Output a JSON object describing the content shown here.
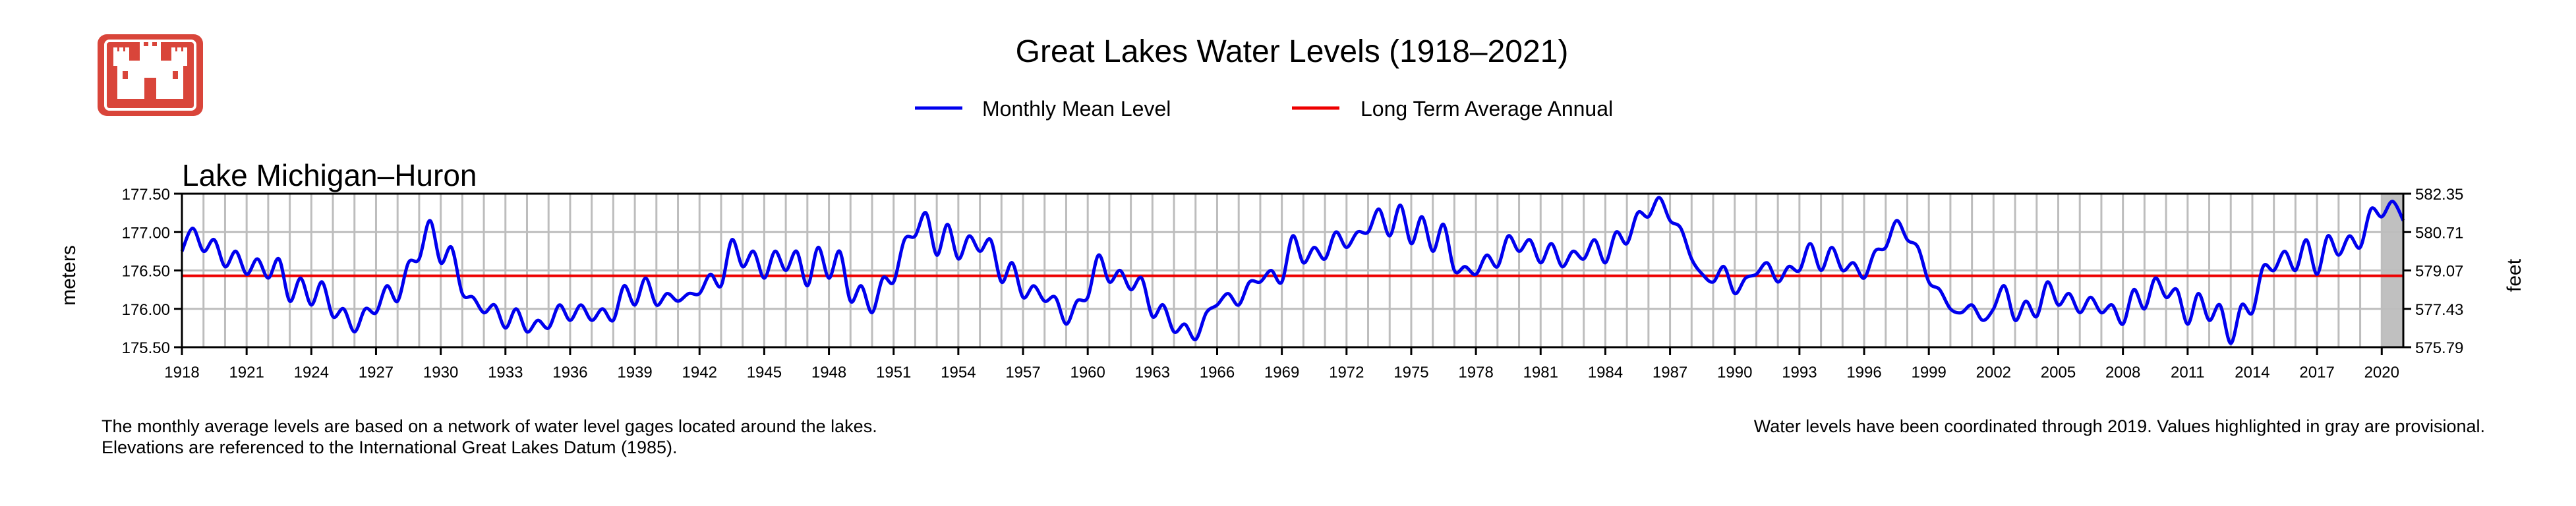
{
  "chart_data": {
    "type": "line",
    "title": "Great Lakes Water Levels (1918–2021)",
    "subtitle": "Lake Michigan–Huron",
    "ylabel_left": "meters",
    "ylabel_right": "feet",
    "legend": [
      {
        "label": "Monthly Mean Level",
        "color": "#0000ee"
      },
      {
        "label": "Long Term Average Annual",
        "color": "#ee0000"
      }
    ],
    "legend_placement": "top-center",
    "grid": true,
    "xlim": [
      1918,
      2021
    ],
    "ylim": [
      175.5,
      177.5
    ],
    "ylim_feet": [
      575.79,
      582.35
    ],
    "x_ticks": [
      "1918",
      "1921",
      "1924",
      "1927",
      "1930",
      "1933",
      "1936",
      "1939",
      "1942",
      "1945",
      "1948",
      "1951",
      "1954",
      "1957",
      "1960",
      "1963",
      "1966",
      "1969",
      "1972",
      "1975",
      "1978",
      "1981",
      "1984",
      "1987",
      "1990",
      "1993",
      "1996",
      "1999",
      "2002",
      "2005",
      "2008",
      "2011",
      "2014",
      "2017",
      "2020"
    ],
    "y_ticks_meters": [
      "175.50",
      "176.00",
      "176.50",
      "177.00",
      "177.50"
    ],
    "y_ticks_feet": [
      "575.79",
      "577.43",
      "579.07",
      "580.71",
      "582.35"
    ],
    "long_term_average": 176.43,
    "provisional_region": [
      2020,
      2021
    ],
    "series": [
      {
        "name": "Monthly Mean Level",
        "x": [
          1918,
          1918.5,
          1919,
          1919.5,
          1920,
          1920.5,
          1921,
          1921.5,
          1922,
          1922.5,
          1923,
          1923.5,
          1924,
          1924.5,
          1925,
          1925.5,
          1926,
          1926.5,
          1927,
          1927.5,
          1928,
          1928.5,
          1929,
          1929.5,
          1930,
          1930.5,
          1931,
          1931.5,
          1932,
          1932.5,
          1933,
          1933.5,
          1934,
          1934.5,
          1935,
          1935.5,
          1936,
          1936.5,
          1937,
          1937.5,
          1938,
          1938.5,
          1939,
          1939.5,
          1940,
          1940.5,
          1941,
          1941.5,
          1942,
          1942.5,
          1943,
          1943.5,
          1944,
          1944.5,
          1945,
          1945.5,
          1946,
          1946.5,
          1947,
          1947.5,
          1948,
          1948.5,
          1949,
          1949.5,
          1950,
          1950.5,
          1951,
          1951.5,
          1952,
          1952.5,
          1953,
          1953.5,
          1954,
          1954.5,
          1955,
          1955.5,
          1956,
          1956.5,
          1957,
          1957.5,
          1958,
          1958.5,
          1959,
          1959.5,
          1960,
          1960.5,
          1961,
          1961.5,
          1962,
          1962.5,
          1963,
          1963.5,
          1964,
          1964.5,
          1965,
          1965.5,
          1966,
          1966.5,
          1967,
          1967.5,
          1968,
          1968.5,
          1969,
          1969.5,
          1970,
          1970.5,
          1971,
          1971.5,
          1972,
          1972.5,
          1973,
          1973.5,
          1974,
          1974.5,
          1975,
          1975.5,
          1976,
          1976.5,
          1977,
          1977.5,
          1978,
          1978.5,
          1979,
          1979.5,
          1980,
          1980.5,
          1981,
          1981.5,
          1982,
          1982.5,
          1983,
          1983.5,
          1984,
          1984.5,
          1985,
          1985.5,
          1986,
          1986.5,
          1987,
          1987.5,
          1988,
          1988.5,
          1989,
          1989.5,
          1990,
          1990.5,
          1991,
          1991.5,
          1992,
          1992.5,
          1993,
          1993.5,
          1994,
          1994.5,
          1995,
          1995.5,
          1996,
          1996.5,
          1997,
          1997.5,
          1998,
          1998.5,
          1999,
          1999.5,
          2000,
          2000.5,
          2001,
          2001.5,
          2002,
          2002.5,
          2003,
          2003.5,
          2004,
          2004.5,
          2005,
          2005.5,
          2006,
          2006.5,
          2007,
          2007.5,
          2008,
          2008.5,
          2009,
          2009.5,
          2010,
          2010.5,
          2011,
          2011.5,
          2012,
          2012.5,
          2013,
          2013.5,
          2014,
          2014.5,
          2015,
          2015.5,
          2016,
          2016.5,
          2017,
          2017.5,
          2018,
          2018.5,
          2019,
          2019.5,
          2020,
          2020.5,
          2021
        ],
        "values": [
          176.75,
          177.05,
          176.75,
          176.9,
          176.55,
          176.75,
          176.45,
          176.65,
          176.4,
          176.65,
          176.1,
          176.4,
          176.05,
          176.35,
          175.9,
          176.0,
          175.7,
          176.0,
          175.95,
          176.3,
          176.1,
          176.6,
          176.65,
          177.15,
          176.6,
          176.8,
          176.2,
          176.15,
          175.95,
          176.05,
          175.75,
          176.0,
          175.7,
          175.85,
          175.75,
          176.05,
          175.85,
          176.05,
          175.85,
          176.0,
          175.85,
          176.3,
          176.05,
          176.4,
          176.05,
          176.2,
          176.1,
          176.2,
          176.2,
          176.45,
          176.3,
          176.9,
          176.55,
          176.75,
          176.4,
          176.75,
          176.5,
          176.75,
          176.3,
          176.8,
          176.4,
          176.75,
          176.1,
          176.3,
          175.95,
          176.4,
          176.35,
          176.9,
          176.95,
          177.25,
          176.7,
          177.1,
          176.65,
          176.95,
          176.75,
          176.9,
          176.35,
          176.6,
          176.15,
          176.3,
          176.1,
          176.15,
          175.8,
          176.1,
          176.15,
          176.7,
          176.35,
          176.5,
          176.25,
          176.4,
          175.9,
          176.05,
          175.7,
          175.8,
          175.6,
          175.95,
          176.05,
          176.2,
          176.05,
          176.35,
          176.35,
          176.5,
          176.35,
          176.95,
          176.6,
          176.8,
          176.65,
          177.0,
          176.8,
          177.0,
          177.0,
          177.3,
          176.95,
          177.35,
          176.85,
          177.2,
          176.75,
          177.1,
          176.5,
          176.55,
          176.45,
          176.7,
          176.55,
          176.95,
          176.75,
          176.9,
          176.6,
          176.85,
          176.55,
          176.75,
          176.65,
          176.9,
          176.6,
          177.0,
          176.85,
          177.25,
          177.2,
          177.45,
          177.15,
          177.05,
          176.65,
          176.45,
          176.35,
          176.55,
          176.2,
          176.4,
          176.45,
          176.6,
          176.35,
          176.55,
          176.5,
          176.85,
          176.5,
          176.8,
          176.5,
          176.6,
          176.4,
          176.75,
          176.8,
          177.15,
          176.9,
          176.8,
          176.35,
          176.25,
          176.0,
          175.95,
          176.05,
          175.85,
          176.0,
          176.3,
          175.85,
          176.1,
          175.9,
          176.35,
          176.05,
          176.2,
          175.95,
          176.15,
          175.95,
          176.05,
          175.8,
          176.25,
          176.0,
          176.4,
          176.15,
          176.25,
          175.8,
          176.2,
          175.85,
          176.05,
          175.55,
          176.05,
          175.95,
          176.55,
          176.5,
          176.75,
          176.5,
          176.9,
          176.45,
          176.95,
          176.7,
          176.95,
          176.8,
          177.3,
          177.2,
          177.4,
          177.15
        ]
      }
    ]
  },
  "header": {
    "logo_icon": "usace-castle-icon",
    "logo_color": "#d9453a"
  },
  "footer": {
    "note_left_1": "The monthly average levels are based on a network of water level gages located around the lakes.",
    "note_left_2": "Elevations are referenced to the International Great Lakes Datum (1985).",
    "note_right": "Water levels have been coordinated through 2019. Values highlighted in gray are provisional."
  }
}
